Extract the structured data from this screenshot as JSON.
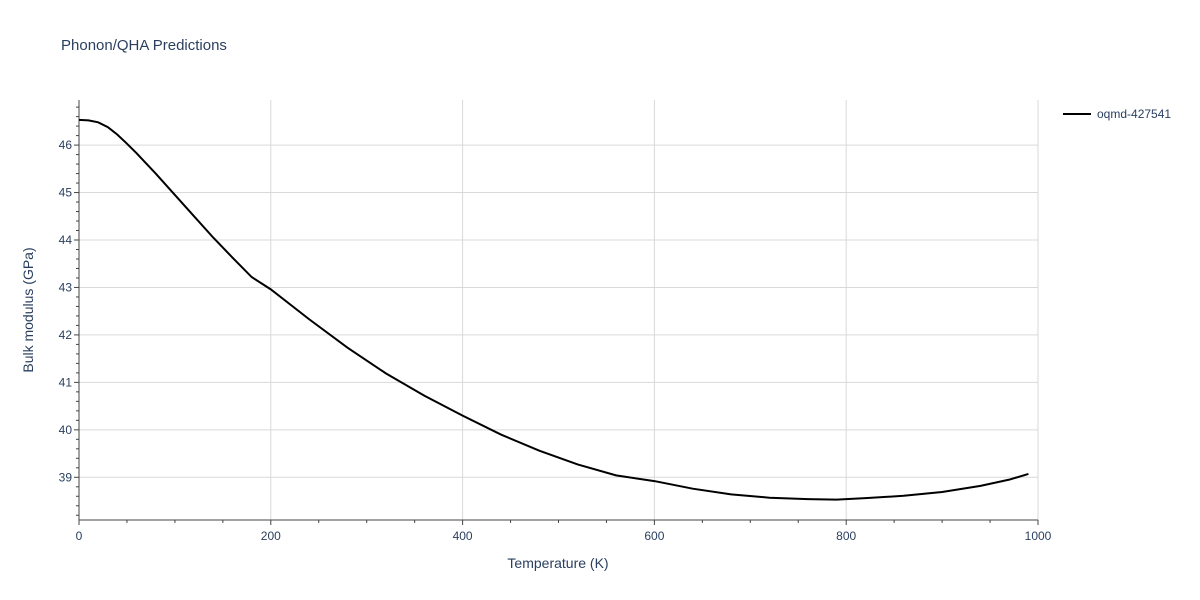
{
  "chart_data": {
    "type": "line",
    "title": "Phonon/QHA Predictions",
    "xlabel": "Temperature (K)",
    "ylabel": "Bulk modulus (GPa)",
    "xlim": [
      0,
      1000
    ],
    "ylim": [
      38.1,
      46.95
    ],
    "xticks": [
      0,
      200,
      400,
      600,
      800,
      1000
    ],
    "yticks": [
      39,
      40,
      41,
      42,
      43,
      44,
      45,
      46
    ],
    "grid": true,
    "legend_position": "top-right",
    "colors": {
      "series": "#000000",
      "grid": "#d9d9d9",
      "text": "#2a3f5f"
    },
    "series": [
      {
        "name": "oqmd-427541",
        "x": [
          0,
          10,
          20,
          30,
          40,
          50,
          60,
          80,
          100,
          120,
          140,
          160,
          180,
          200,
          240,
          280,
          320,
          360,
          400,
          440,
          480,
          520,
          560,
          600,
          640,
          680,
          720,
          760,
          790,
          820,
          860,
          900,
          940,
          970,
          990
        ],
        "y": [
          46.53,
          46.52,
          46.48,
          46.38,
          46.22,
          46.03,
          45.83,
          45.4,
          44.95,
          44.5,
          44.05,
          43.63,
          43.22,
          42.96,
          42.33,
          41.73,
          41.19,
          40.72,
          40.3,
          39.9,
          39.56,
          39.27,
          39.04,
          38.92,
          38.76,
          38.64,
          38.57,
          38.54,
          38.53,
          38.56,
          38.61,
          38.69,
          38.82,
          38.95,
          39.07
        ]
      }
    ]
  }
}
